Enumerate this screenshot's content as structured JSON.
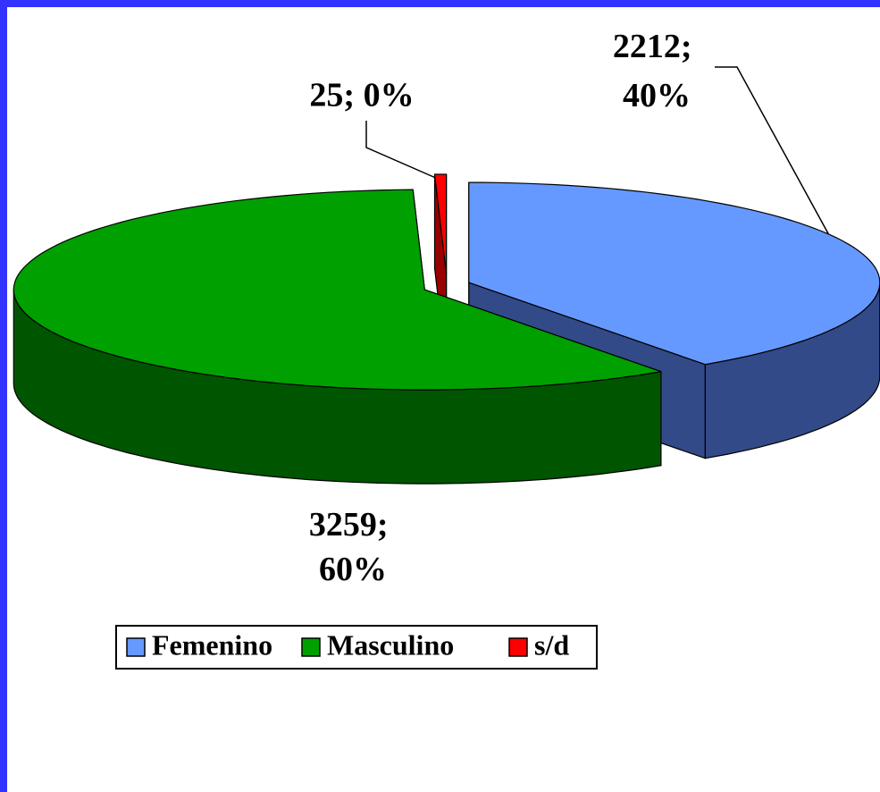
{
  "chart_data": {
    "type": "pie3d",
    "categories": [
      "Femenino",
      "Masculino",
      "s/d"
    ],
    "values": [
      2212,
      3259,
      25
    ],
    "value_labels": [
      "2212; 40%",
      "3259; 60%",
      "25; 0%"
    ],
    "colors": [
      "#6699ff",
      "#00a000",
      "#ff0000"
    ],
    "side_colors": [
      "#334a88",
      "#005500",
      "#990000"
    ],
    "legend": "bottom"
  }
}
